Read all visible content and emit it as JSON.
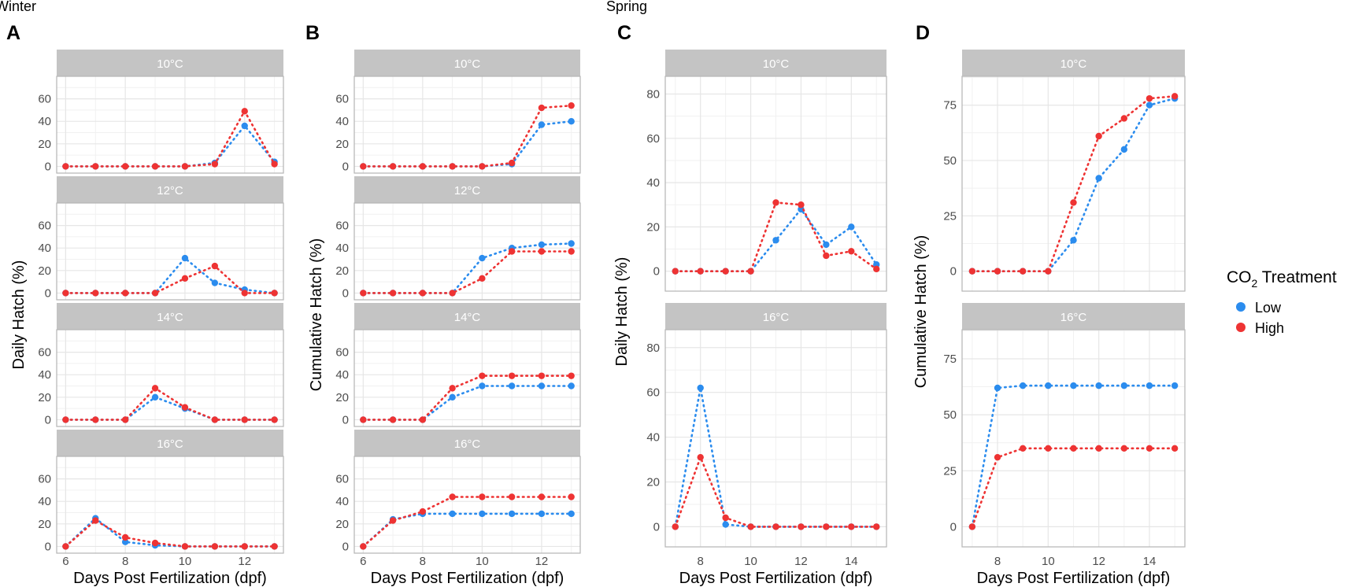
{
  "season_labels": {
    "winter": "Winter",
    "spring": "Spring"
  },
  "legend": {
    "title_prefix": "CO",
    "title_sub": "2",
    "title_suffix": " Treatment",
    "items": [
      {
        "label": "Low",
        "color": "#2b8cee"
      },
      {
        "label": "High",
        "color": "#ee3333"
      }
    ]
  },
  "colors": {
    "low": "#2b8cee",
    "high": "#ee3333",
    "strip": "#c4c4c4",
    "grid": "#e6e6e6",
    "border": "#b5b5b5"
  },
  "chart_data": [
    {
      "panel": "A",
      "type": "scatter",
      "ylabel": "Daily Hatch (%)",
      "xlabel": "Days Post Fertilization (dpf)",
      "xlim": [
        5.7,
        13.3
      ],
      "ylim": [
        -6,
        80
      ],
      "x_ticks": [
        6,
        8,
        10,
        12
      ],
      "y_ticks": [
        0,
        20,
        40,
        60
      ],
      "facets": [
        {
          "strip": "10°C",
          "low": {
            "x": [
              6,
              7,
              8,
              9,
              10,
              11,
              12,
              13
            ],
            "y": [
              0,
              0,
              0,
              0,
              0,
              3,
              36,
              4
            ]
          },
          "high": {
            "x": [
              6,
              7,
              8,
              9,
              10,
              11,
              12,
              13
            ],
            "y": [
              0,
              0,
              0,
              0,
              0,
              2,
              49,
              2
            ]
          }
        },
        {
          "strip": "12°C",
          "low": {
            "x": [
              6,
              7,
              8,
              9,
              10,
              11,
              12,
              13
            ],
            "y": [
              0,
              0,
              0,
              0,
              31,
              9,
              3,
              0
            ]
          },
          "high": {
            "x": [
              6,
              7,
              8,
              9,
              10,
              11,
              12,
              13
            ],
            "y": [
              0,
              0,
              0,
              0,
              13,
              24,
              0,
              0
            ]
          }
        },
        {
          "strip": "14°C",
          "low": {
            "x": [
              6,
              7,
              8,
              9,
              10,
              11,
              12,
              13
            ],
            "y": [
              0,
              0,
              0,
              20,
              10,
              0,
              0,
              0
            ]
          },
          "high": {
            "x": [
              6,
              7,
              8,
              9,
              10,
              11,
              12,
              13
            ],
            "y": [
              0,
              0,
              0,
              28,
              11,
              0,
              0,
              0
            ]
          }
        },
        {
          "strip": "16°C",
          "low": {
            "x": [
              6,
              7,
              8,
              9,
              10,
              11,
              12,
              13
            ],
            "y": [
              0,
              25,
              4,
              1,
              0,
              0,
              0,
              0
            ]
          },
          "high": {
            "x": [
              6,
              7,
              8,
              9,
              10,
              11,
              12,
              13
            ],
            "y": [
              0,
              23,
              8,
              3,
              0,
              0,
              0,
              0
            ]
          }
        }
      ]
    },
    {
      "panel": "B",
      "type": "scatter",
      "ylabel": "Cumulative Hatch (%)",
      "xlabel": "Days Post Fertilization (dpf)",
      "xlim": [
        5.7,
        13.3
      ],
      "ylim": [
        -6,
        80
      ],
      "x_ticks": [
        6,
        8,
        10,
        12
      ],
      "y_ticks": [
        0,
        20,
        40,
        60
      ],
      "facets": [
        {
          "strip": "10°C",
          "low": {
            "x": [
              6,
              7,
              8,
              9,
              10,
              11,
              12,
              13
            ],
            "y": [
              0,
              0,
              0,
              0,
              0,
              2,
              37,
              40
            ]
          },
          "high": {
            "x": [
              6,
              7,
              8,
              9,
              10,
              11,
              12,
              13
            ],
            "y": [
              0,
              0,
              0,
              0,
              0,
              3,
              52,
              54
            ]
          }
        },
        {
          "strip": "12°C",
          "low": {
            "x": [
              6,
              7,
              8,
              9,
              10,
              11,
              12,
              13
            ],
            "y": [
              0,
              0,
              0,
              0,
              31,
              40,
              43,
              44
            ]
          },
          "high": {
            "x": [
              6,
              7,
              8,
              9,
              10,
              11,
              12,
              13
            ],
            "y": [
              0,
              0,
              0,
              0,
              13,
              37,
              37,
              37
            ]
          }
        },
        {
          "strip": "14°C",
          "low": {
            "x": [
              6,
              7,
              8,
              9,
              10,
              11,
              12,
              13
            ],
            "y": [
              0,
              0,
              0,
              20,
              30,
              30,
              30,
              30
            ]
          },
          "high": {
            "x": [
              6,
              7,
              8,
              9,
              10,
              11,
              12,
              13
            ],
            "y": [
              0,
              0,
              0,
              28,
              39,
              39,
              39,
              39
            ]
          }
        },
        {
          "strip": "16°C",
          "low": {
            "x": [
              6,
              7,
              8,
              9,
              10,
              11,
              12,
              13
            ],
            "y": [
              0,
              24,
              29,
              29,
              29,
              29,
              29,
              29
            ]
          },
          "high": {
            "x": [
              6,
              7,
              8,
              9,
              10,
              11,
              12,
              13
            ],
            "y": [
              0,
              23,
              31,
              44,
              44,
              44,
              44,
              44
            ]
          }
        }
      ]
    },
    {
      "panel": "C",
      "type": "scatter",
      "ylabel": "Daily Hatch (%)",
      "xlabel": "Days Post Fertilization (dpf)",
      "xlim": [
        6.6,
        15.4
      ],
      "ylim": [
        -9,
        88
      ],
      "x_ticks": [
        8,
        10,
        12,
        14
      ],
      "y_ticks": [
        0,
        20,
        40,
        60,
        80
      ],
      "facets": [
        {
          "strip": "10°C",
          "low": {
            "x": [
              7,
              8,
              9,
              10,
              11,
              12,
              13,
              14,
              15
            ],
            "y": [
              0,
              0,
              0,
              0,
              14,
              28,
              12,
              20,
              3
            ]
          },
          "high": {
            "x": [
              7,
              8,
              9,
              10,
              11,
              12,
              13,
              14,
              15
            ],
            "y": [
              0,
              0,
              0,
              0,
              31,
              30,
              7,
              9,
              1
            ]
          }
        },
        {
          "strip": "16°C",
          "low": {
            "x": [
              7,
              8,
              9,
              10,
              11,
              12,
              13,
              14,
              15
            ],
            "y": [
              0,
              62,
              1,
              0,
              0,
              0,
              0,
              0,
              0
            ]
          },
          "high": {
            "x": [
              7,
              8,
              9,
              10,
              11,
              12,
              13,
              14,
              15
            ],
            "y": [
              0,
              31,
              4,
              0,
              0,
              0,
              0,
              0,
              0
            ]
          }
        }
      ]
    },
    {
      "panel": "D",
      "type": "scatter",
      "ylabel": "Cumulative Hatch (%)",
      "xlabel": "Days Post Fertilization (dpf)",
      "xlim": [
        6.6,
        15.4
      ],
      "ylim": [
        -9,
        88
      ],
      "x_ticks": [
        8,
        10,
        12,
        14
      ],
      "y_ticks": [
        0,
        25,
        50,
        75
      ],
      "facets": [
        {
          "strip": "10°C",
          "low": {
            "x": [
              7,
              8,
              9,
              10,
              11,
              12,
              13,
              14,
              15
            ],
            "y": [
              0,
              0,
              0,
              0,
              14,
              42,
              55,
              75,
              78
            ]
          },
          "high": {
            "x": [
              7,
              8,
              9,
              10,
              11,
              12,
              13,
              14,
              15
            ],
            "y": [
              0,
              0,
              0,
              0,
              31,
              61,
              69,
              78,
              79
            ]
          }
        },
        {
          "strip": "16°C",
          "low": {
            "x": [
              7,
              8,
              9,
              10,
              11,
              12,
              13,
              14,
              15
            ],
            "y": [
              0,
              62,
              63,
              63,
              63,
              63,
              63,
              63,
              63
            ]
          },
          "high": {
            "x": [
              7,
              8,
              9,
              10,
              11,
              12,
              13,
              14,
              15
            ],
            "y": [
              0,
              31,
              35,
              35,
              35,
              35,
              35,
              35,
              35
            ]
          }
        }
      ]
    }
  ]
}
